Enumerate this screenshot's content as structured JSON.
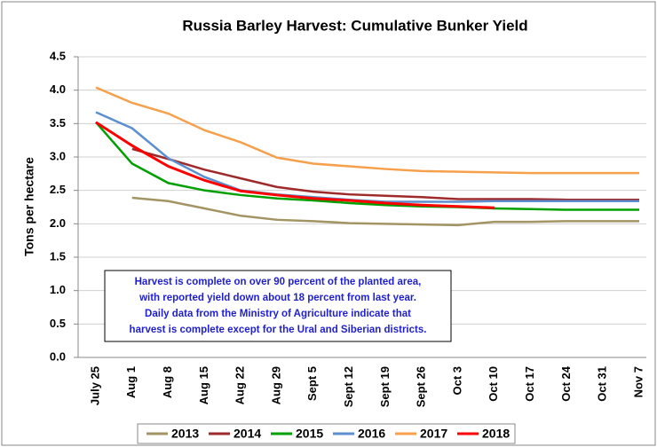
{
  "chart_data": {
    "type": "line",
    "title": "Russia Barley Harvest: Cumulative Bunker Yield",
    "y_label": "Tons per hectare",
    "annotation": [
      "Harvest is complete on over 90 percent of the planted area,",
      "with reported yield down about 18 percent from last year.",
      "Daily data from the Ministry of Agriculture indicate that",
      "harvest is complete except for the Ural and Siberian districts."
    ],
    "categories": [
      "July 25",
      "Aug 1",
      "Aug 8",
      "Aug 15",
      "Aug 22",
      "Aug 29",
      "Sept 5",
      "Sept 12",
      "Sept 19",
      "Sept 26",
      "Oct 3",
      "Oct 10",
      "Oct 17",
      "Oct 24",
      "Oct 31",
      "Nov 7"
    ],
    "series": [
      {
        "name": "2013",
        "color": "#a39563",
        "values": [
          null,
          2.39,
          2.34,
          2.23,
          2.12,
          2.06,
          2.04,
          2.01,
          2.0,
          1.99,
          1.98,
          2.03,
          2.03,
          2.04,
          2.04,
          2.04
        ]
      },
      {
        "name": "2014",
        "color": "#9e2a2b",
        "values": [
          null,
          3.12,
          2.97,
          2.81,
          2.68,
          2.55,
          2.48,
          2.44,
          2.42,
          2.4,
          2.37,
          2.37,
          2.37,
          2.36,
          2.36,
          2.36
        ]
      },
      {
        "name": "2015",
        "color": "#00a000",
        "values": [
          3.52,
          2.9,
          2.61,
          2.5,
          2.43,
          2.38,
          2.35,
          2.31,
          2.28,
          2.26,
          2.25,
          2.23,
          2.22,
          2.21,
          2.21,
          2.21
        ]
      },
      {
        "name": "2016",
        "color": "#5b8fd0",
        "values": [
          3.67,
          3.43,
          2.98,
          2.7,
          2.5,
          2.44,
          2.4,
          2.36,
          2.33,
          2.33,
          2.33,
          2.34,
          2.34,
          2.34,
          2.34,
          2.34
        ]
      },
      {
        "name": "2017",
        "color": "#f6a04c",
        "values": [
          4.04,
          3.81,
          3.65,
          3.4,
          3.22,
          2.99,
          2.9,
          2.86,
          2.82,
          2.79,
          2.78,
          2.77,
          2.76,
          2.76,
          2.76,
          2.76
        ]
      },
      {
        "name": "2018",
        "color": "#ff0000",
        "values": [
          3.52,
          3.17,
          2.86,
          2.65,
          2.49,
          2.43,
          2.38,
          2.35,
          2.31,
          2.28,
          2.26,
          2.24,
          null,
          null,
          null,
          null
        ]
      }
    ],
    "ylim": [
      0,
      4.5
    ],
    "yticks": [
      {
        "value": 0,
        "label": "0.0"
      },
      0.5,
      {
        "value": 1,
        "label": "1.0"
      },
      1.5,
      {
        "value": 2,
        "label": "2.0"
      },
      2.5,
      {
        "value": 3,
        "label": "3.0"
      },
      3.5,
      {
        "value": 4,
        "label": "4.0"
      },
      4.5
    ],
    "grid": true
  }
}
